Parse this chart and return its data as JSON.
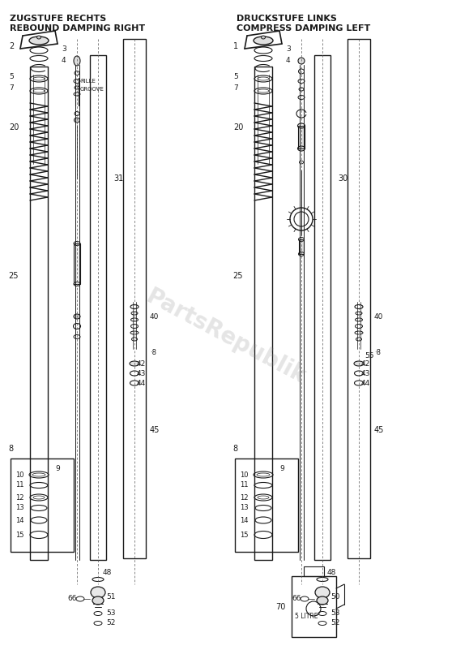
{
  "title_left_line1": "ZUGSTUFE RECHTS",
  "title_left_line2": "REBOUND DAMPING RIGHT",
  "title_right_line1": "DRUCKSTUFE LINKS",
  "title_right_line2": "COMPRESS DAMPING LEFT",
  "bg_color": "#ffffff",
  "line_color": "#1a1a1a",
  "text_color": "#1a1a1a",
  "watermark": "PartsRepublik",
  "fig_width": 5.58,
  "fig_height": 8.17,
  "dpi": 100
}
